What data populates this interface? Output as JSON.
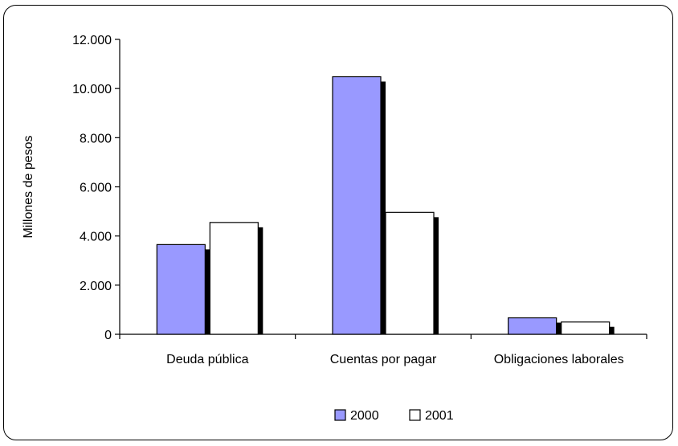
{
  "chart_data": {
    "type": "bar",
    "title": "",
    "xlabel": "",
    "ylabel": "Millones de pesos",
    "categories": [
      "Deuda pública",
      "Cuentas por pagar",
      "Obligaciones laborales"
    ],
    "series": [
      {
        "name": "2000",
        "values": [
          3650,
          10480,
          670
        ],
        "color": "#9999ff"
      },
      {
        "name": "2001",
        "values": [
          4550,
          4960,
          500
        ],
        "color": "#ffffff"
      }
    ],
    "ylim": [
      0,
      12000
    ],
    "yticks": [
      0,
      2000,
      4000,
      6000,
      8000,
      10000,
      12000
    ],
    "ytick_labels": [
      "0",
      "2.000",
      "4.000",
      "6.000",
      "8.000",
      "10.000",
      "12.000"
    ],
    "grid": false,
    "legend_position": "bottom",
    "bar_shadow": true
  }
}
